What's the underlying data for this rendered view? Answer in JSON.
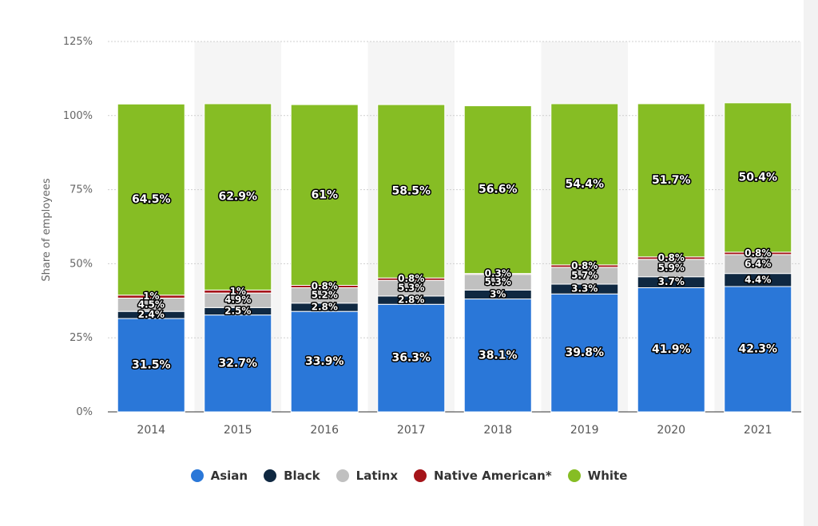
{
  "chart_data": {
    "type": "bar",
    "stacked": true,
    "ylabel": "Share of employees",
    "xlabel": "",
    "ylim": [
      0,
      125
    ],
    "ytick_labels": [
      "0%",
      "25%",
      "50%",
      "75%",
      "100%",
      "125%"
    ],
    "categories": [
      "2014",
      "2015",
      "2016",
      "2017",
      "2018",
      "2019",
      "2020",
      "2021"
    ],
    "series": [
      {
        "name": "Asian",
        "color": "#2a77d8",
        "values": [
          31.5,
          32.7,
          33.9,
          36.3,
          38.1,
          39.8,
          41.9,
          42.3
        ],
        "labels": [
          "31.5%",
          "32.7%",
          "33.9%",
          "36.3%",
          "38.1%",
          "39.8%",
          "41.9%",
          "42.3%"
        ]
      },
      {
        "name": "Black",
        "color": "#0f2841",
        "values": [
          2.4,
          2.5,
          2.8,
          2.8,
          3,
          3.3,
          3.7,
          4.4
        ],
        "labels": [
          "2.4%",
          "2.5%",
          "2.8%",
          "2.8%",
          "3%",
          "3.3%",
          "3.7%",
          "4.4%"
        ]
      },
      {
        "name": "Latinx",
        "color": "#c0c0c0",
        "values": [
          4.5,
          4.9,
          5.2,
          5.3,
          5.3,
          5.7,
          5.9,
          6.4
        ],
        "labels": [
          "4.5%",
          "4.9%",
          "5.2%",
          "5.3%",
          "5.3%",
          "5.7%",
          "5.9%",
          "6.4%"
        ]
      },
      {
        "name": "Native American*",
        "color": "#a51419",
        "values": [
          1,
          1,
          0.8,
          0.8,
          0.3,
          0.8,
          0.8,
          0.8
        ],
        "labels": [
          "1%",
          "1%",
          "0.8%",
          "0.8%",
          "0.3%",
          "0.8%",
          "0.8%",
          "0.8%"
        ]
      },
      {
        "name": "White",
        "color": "#86bd24",
        "values": [
          64.5,
          62.9,
          61,
          58.5,
          56.6,
          54.4,
          51.7,
          50.4
        ],
        "labels": [
          "64.5%",
          "62.9%",
          "61%",
          "58.5%",
          "56.6%",
          "54.4%",
          "51.7%",
          "50.4%"
        ]
      }
    ],
    "grid": true,
    "legend_position": "bottom"
  }
}
